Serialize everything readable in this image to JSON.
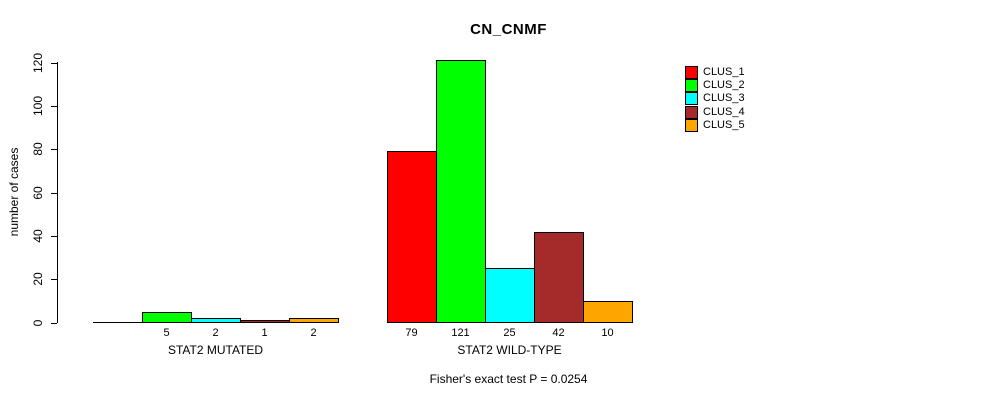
{
  "chart_data": {
    "type": "bar",
    "title": "CN_CNMF",
    "ylabel": "number of cases",
    "ylim": [
      0,
      120
    ],
    "yticks": [
      0,
      20,
      40,
      60,
      80,
      100,
      120
    ],
    "grid": false,
    "legend_position": "right",
    "categories": [
      "STAT2 MUTATED",
      "STAT2 WILD-TYPE"
    ],
    "series": [
      {
        "name": "CLUS_1",
        "color": "#FF0000",
        "values": [
          0,
          79
        ]
      },
      {
        "name": "CLUS_2",
        "color": "#00FF00",
        "values": [
          5,
          121
        ]
      },
      {
        "name": "CLUS_3",
        "color": "#00FFFF",
        "values": [
          2,
          25
        ]
      },
      {
        "name": "CLUS_4",
        "color": "#A52A2A",
        "values": [
          1,
          42
        ]
      },
      {
        "name": "CLUS_5",
        "color": "#FFA500",
        "values": [
          2,
          10
        ]
      }
    ],
    "bar_value_labels": {
      "STAT2 MUTATED": [
        "",
        "5",
        "2",
        "1",
        "2"
      ],
      "STAT2 WILD-TYPE": [
        "79",
        "121",
        "25",
        "42",
        "10"
      ]
    },
    "footnote": "Fisher's exact test P = 0.0254"
  }
}
